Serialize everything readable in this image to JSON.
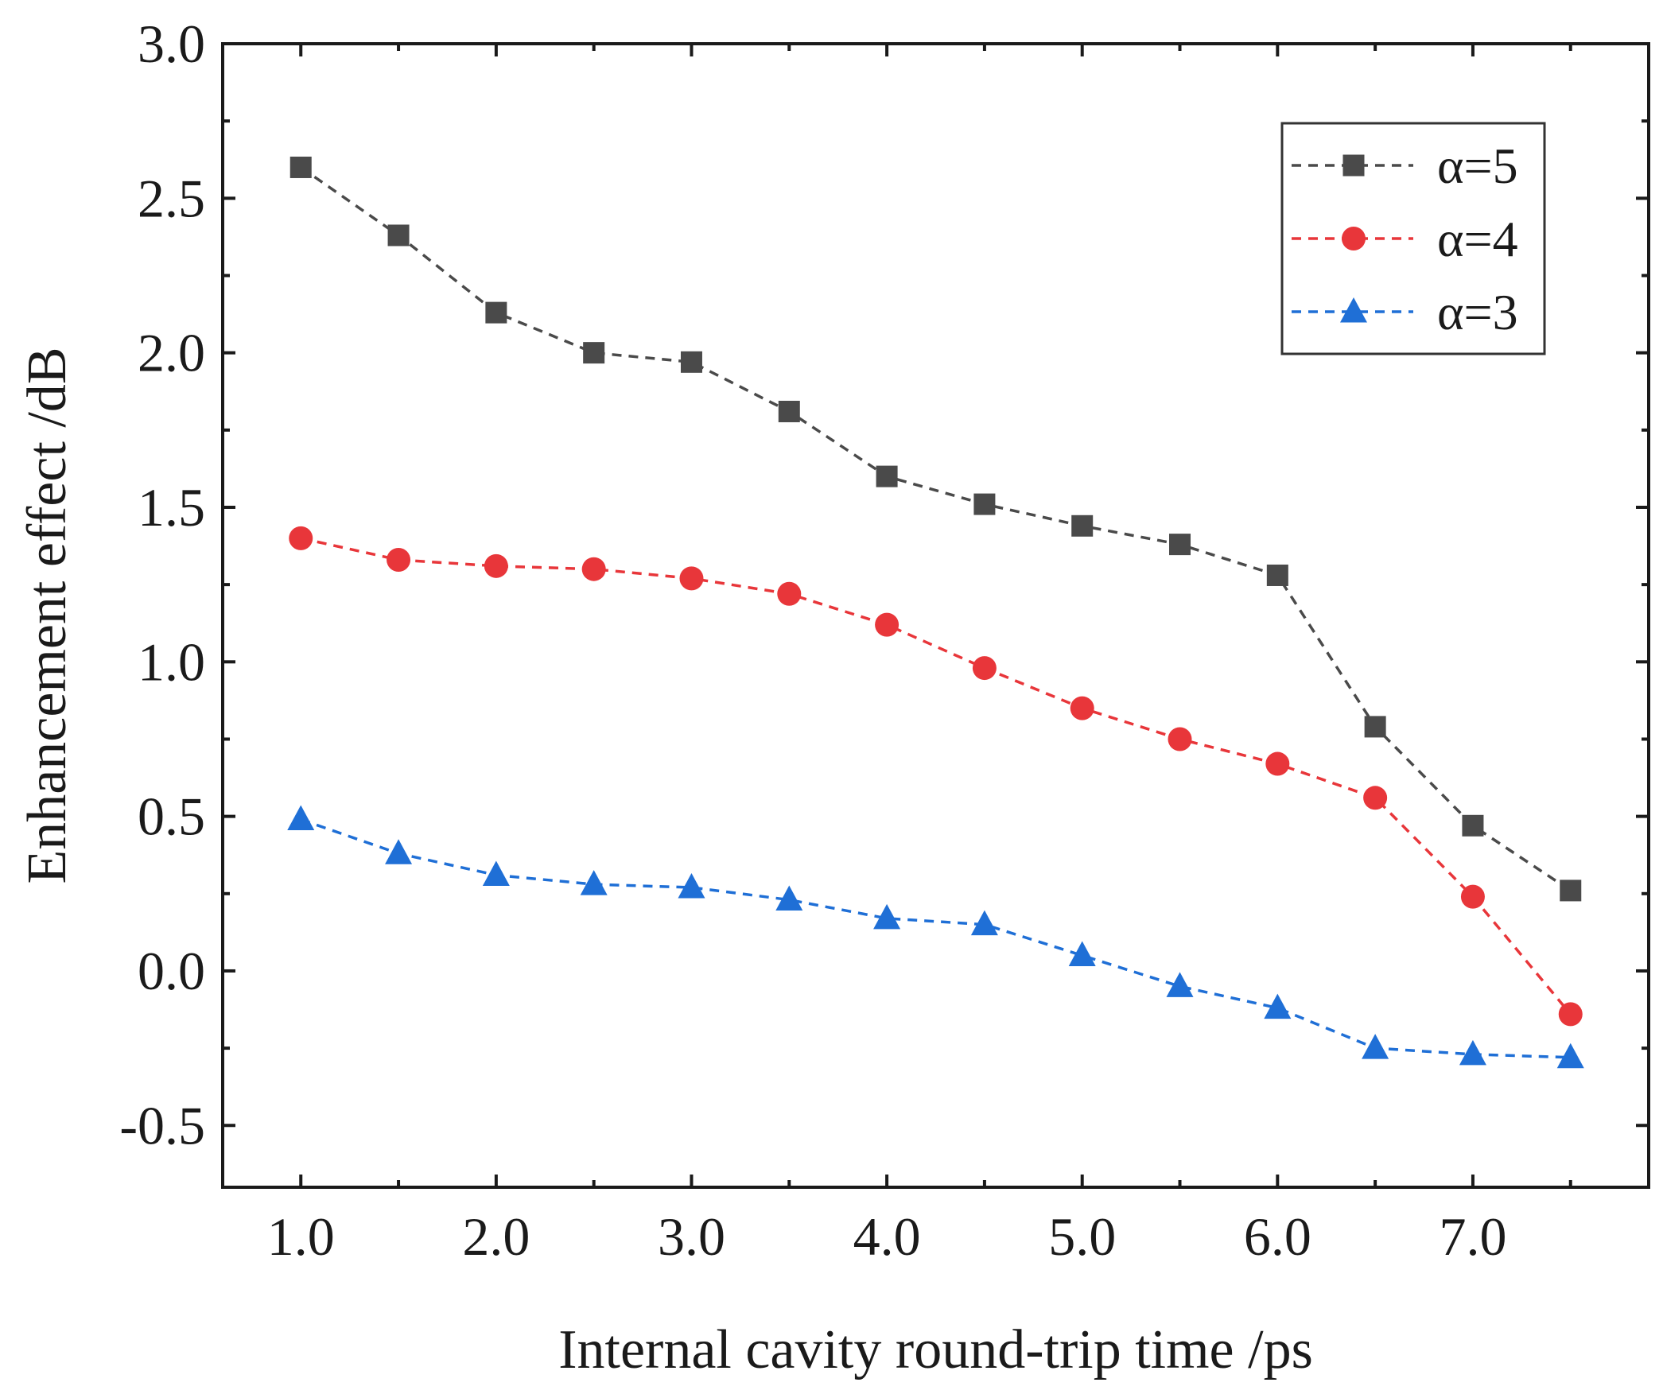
{
  "chart_data": {
    "type": "line",
    "title": "",
    "xlabel": "Internal cavity round-trip time /ps",
    "ylabel": "Enhancement effect /dB",
    "xlim": [
      0.6,
      7.9
    ],
    "ylim": [
      -0.7,
      3.0
    ],
    "xticks": [
      1.0,
      2.0,
      3.0,
      4.0,
      5.0,
      6.0,
      7.0
    ],
    "xtick_labels": [
      "1.0",
      "2.0",
      "3.0",
      "4.0",
      "5.0",
      "6.0",
      "7.0"
    ],
    "xminor": [
      1.5,
      2.5,
      3.5,
      4.5,
      5.5,
      6.5,
      7.5
    ],
    "yticks": [
      -0.5,
      0.0,
      0.5,
      1.0,
      1.5,
      2.0,
      2.5,
      3.0
    ],
    "ytick_labels": [
      "-0.5",
      "0.0",
      "0.5",
      "1.0",
      "1.5",
      "2.0",
      "2.5",
      "3.0"
    ],
    "grid": false,
    "legend_position": "top-right",
    "x": [
      1.0,
      1.5,
      2.0,
      2.5,
      3.0,
      3.5,
      4.0,
      4.5,
      5.0,
      5.5,
      6.0,
      6.5,
      7.0,
      7.5
    ],
    "series": [
      {
        "name": "α=5",
        "marker": "square",
        "color": "#4a4a4a",
        "values": [
          2.6,
          2.38,
          2.13,
          2.0,
          1.97,
          1.81,
          1.6,
          1.51,
          1.44,
          1.38,
          1.28,
          0.79,
          0.47,
          0.26
        ]
      },
      {
        "name": "α=4",
        "marker": "circle",
        "color": "#e8363a",
        "values": [
          1.4,
          1.33,
          1.31,
          1.3,
          1.27,
          1.22,
          1.12,
          0.98,
          0.85,
          0.75,
          0.67,
          0.56,
          0.24,
          -0.14
        ]
      },
      {
        "name": "α=3",
        "marker": "triangle",
        "color": "#1f6fd6",
        "values": [
          0.49,
          0.38,
          0.31,
          0.28,
          0.27,
          0.23,
          0.17,
          0.15,
          0.05,
          -0.05,
          -0.12,
          -0.25,
          -0.27,
          -0.28
        ]
      }
    ]
  }
}
